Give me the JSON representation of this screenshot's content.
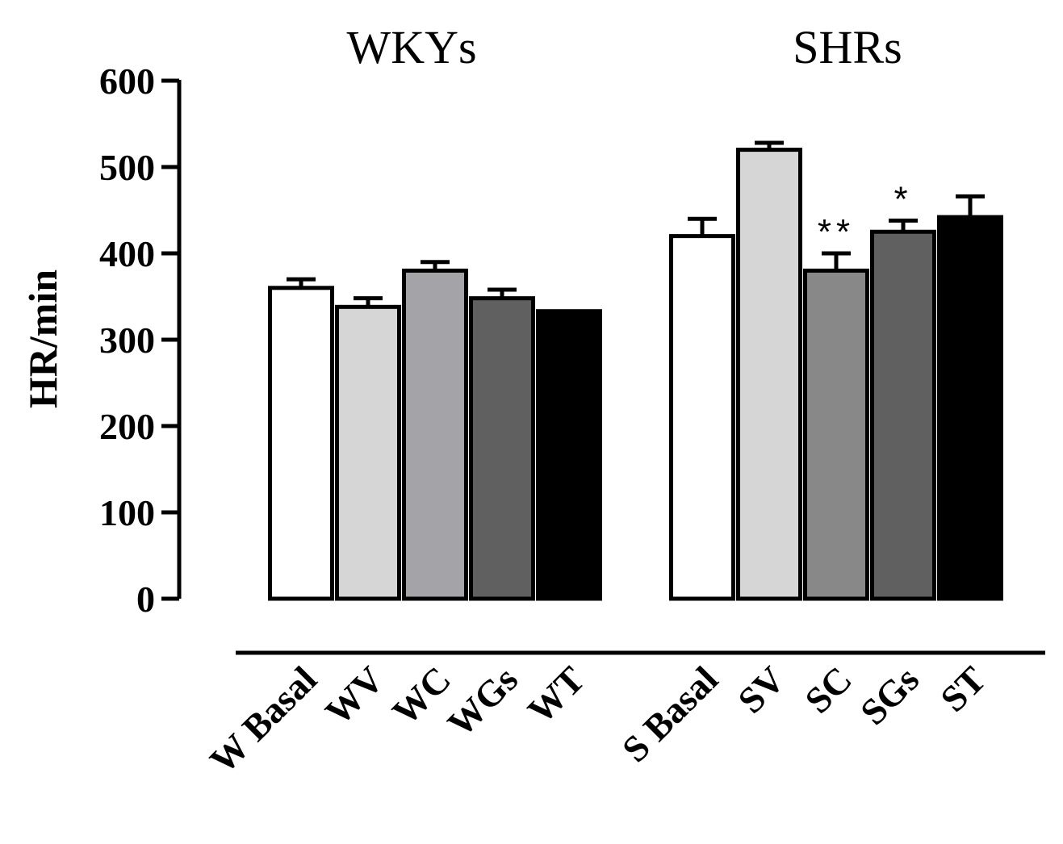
{
  "chart_data": {
    "type": "bar",
    "ylabel": "HR/min",
    "ylim": [
      0,
      600
    ],
    "yticks": [
      0,
      100,
      200,
      300,
      400,
      500,
      600
    ],
    "groups": [
      {
        "title": "WKYs",
        "categories": [
          "W Basal",
          "WV",
          "WC",
          "WGs",
          "WT"
        ],
        "values": [
          360,
          338,
          380,
          348,
          333
        ],
        "errors": [
          10,
          10,
          10,
          10,
          0
        ],
        "colors": [
          "#ffffff",
          "#d6d6d6",
          "#a3a3a8",
          "#606060",
          "#000000"
        ],
        "annotations": [
          "",
          "",
          "",
          "",
          ""
        ]
      },
      {
        "title": "SHRs",
        "categories": [
          "S Basal",
          "SV",
          "SC",
          "SGs",
          "ST"
        ],
        "values": [
          420,
          520,
          380,
          425,
          442
        ],
        "errors": [
          20,
          8,
          20,
          13,
          24
        ],
        "colors": [
          "#ffffff",
          "#d6d6d6",
          "#888888",
          "#606060",
          "#000000"
        ],
        "annotations": [
          "",
          "",
          "**",
          "*",
          ""
        ]
      }
    ]
  }
}
